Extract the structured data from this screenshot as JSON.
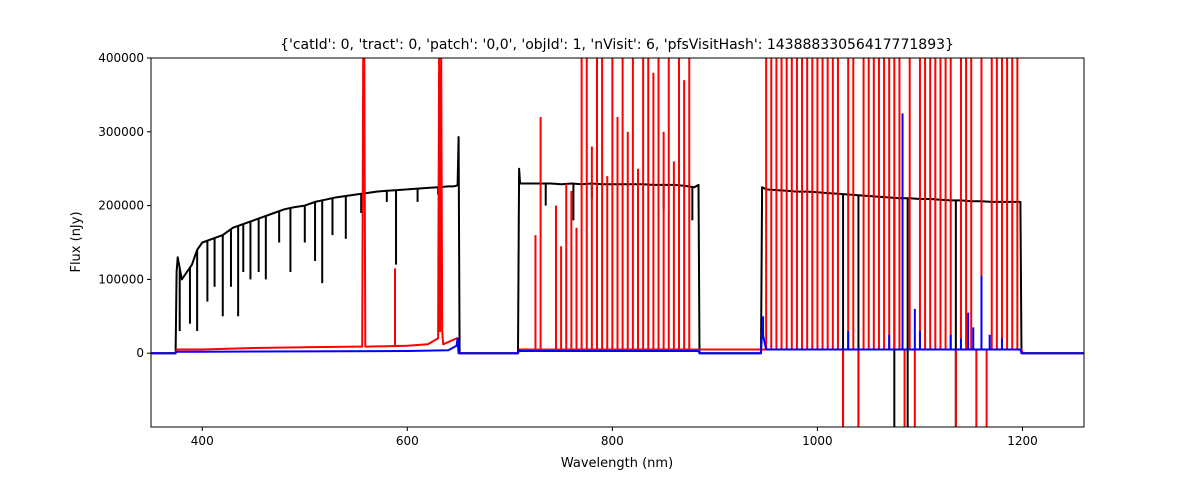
{
  "chart_data": {
    "type": "line",
    "title": "{'catId': 0, 'tract': 0, 'patch': '0,0', 'objId': 1, 'nVisit': 6, 'pfsVisitHash': 14388833056417771893}",
    "xlabel": "Wavelength (nm)",
    "ylabel": "Flux (nJy)",
    "xlim": [
      350,
      1260
    ],
    "ylim": [
      -100000,
      400000
    ],
    "xticks": [
      400,
      600,
      800,
      1000,
      1200
    ],
    "xtick_labels": [
      "400",
      "600",
      "800",
      "1000",
      "1200"
    ],
    "yticks": [
      0,
      100000,
      200000,
      300000,
      400000
    ],
    "ytick_labels": [
      "0",
      "100000",
      "200000",
      "300000",
      "400000"
    ],
    "grid": false,
    "series": [
      {
        "color": "#000000",
        "x": [
          350,
          374,
          375,
          376,
          380,
          390,
          395,
          400,
          410,
          420,
          430,
          440,
          450,
          460,
          470,
          480,
          490,
          500,
          510,
          520,
          530,
          540,
          550,
          560,
          570,
          580,
          590,
          600,
          610,
          620,
          630,
          640,
          645,
          648,
          649,
          650,
          651,
          652,
          708,
          709,
          710,
          720,
          730,
          740,
          750,
          760,
          770,
          780,
          790,
          800,
          810,
          820,
          830,
          840,
          850,
          860,
          870,
          880,
          884,
          885,
          886,
          945,
          946,
          950,
          960,
          970,
          980,
          990,
          1000,
          1010,
          1020,
          1030,
          1040,
          1050,
          1060,
          1070,
          1080,
          1090,
          1100,
          1110,
          1120,
          1130,
          1140,
          1150,
          1160,
          1170,
          1180,
          1190,
          1198,
          1199,
          1260
        ],
        "y": [
          0,
          0,
          110000,
          130000,
          100000,
          120000,
          140000,
          150000,
          155000,
          160000,
          170000,
          175000,
          180000,
          185000,
          190000,
          195000,
          198000,
          200000,
          205000,
          208000,
          211000,
          213000,
          215000,
          217000,
          219000,
          220000,
          221000,
          222000,
          223000,
          224000,
          225000,
          226000,
          226000,
          227000,
          228000,
          293000,
          0,
          0,
          0,
          250000,
          230000,
          230000,
          230000,
          230000,
          229000,
          230000,
          229000,
          230000,
          229000,
          229000,
          229000,
          229000,
          229000,
          228000,
          228000,
          228000,
          227000,
          225000,
          228000,
          0,
          0,
          0,
          225000,
          222000,
          221000,
          220000,
          219000,
          219000,
          218000,
          217000,
          216000,
          215000,
          214000,
          213000,
          212000,
          211000,
          210000,
          210000,
          209000,
          209000,
          208000,
          207000,
          207000,
          206000,
          206000,
          205000,
          205000,
          205000,
          205000,
          0,
          0
        ],
        "spikes": [
          {
            "x": 378,
            "y": 30000
          },
          {
            "x": 388,
            "y": 40000
          },
          {
            "x": 395,
            "y": 30000
          },
          {
            "x": 405,
            "y": 70000
          },
          {
            "x": 412,
            "y": 90000
          },
          {
            "x": 420,
            "y": 50000
          },
          {
            "x": 428,
            "y": 90000
          },
          {
            "x": 435,
            "y": 50000
          },
          {
            "x": 440,
            "y": 110000
          },
          {
            "x": 447,
            "y": 100000
          },
          {
            "x": 455,
            "y": 110000
          },
          {
            "x": 462,
            "y": 100000
          },
          {
            "x": 475,
            "y": 150000
          },
          {
            "x": 486,
            "y": 110000
          },
          {
            "x": 500,
            "y": 150000
          },
          {
            "x": 510,
            "y": 125000
          },
          {
            "x": 517,
            "y": 95000
          },
          {
            "x": 527,
            "y": 160000
          },
          {
            "x": 540,
            "y": 155000
          },
          {
            "x": 555,
            "y": 190000
          },
          {
            "x": 580,
            "y": 205000
          },
          {
            "x": 589,
            "y": 120000
          },
          {
            "x": 610,
            "y": 205000
          },
          {
            "x": 630,
            "y": 215000
          },
          {
            "x": 656,
            "y": 0
          },
          {
            "x": 735,
            "y": 200000
          },
          {
            "x": 762,
            "y": 180000
          },
          {
            "x": 780,
            "y": 210000
          },
          {
            "x": 850,
            "y": 195000
          },
          {
            "x": 878,
            "y": 180000
          },
          {
            "x": 1025,
            "y": -100000
          },
          {
            "x": 1040,
            "y": -100000
          },
          {
            "x": 1075,
            "y": -100000
          },
          {
            "x": 1088,
            "y": -100000
          },
          {
            "x": 1135,
            "y": -100000
          }
        ]
      },
      {
        "color": "#ff0000",
        "x": [
          350,
          374,
          375,
          380,
          400,
          450,
          500,
          550,
          556,
          557,
          558,
          559,
          560,
          600,
          620,
          630,
          631,
          632,
          633,
          634,
          635,
          640,
          648,
          649,
          650,
          651,
          652,
          708,
          709,
          710,
          945,
          946,
          1199,
          1200,
          1260
        ],
        "y": [
          0,
          0,
          5000,
          5000,
          5000,
          7000,
          8000,
          9000,
          9000,
          400000,
          400000,
          9000,
          9000,
          10000,
          12000,
          20000,
          400000,
          30000,
          400000,
          30000,
          12000,
          15000,
          20000,
          20000,
          0,
          0,
          0,
          0,
          5000,
          5000,
          5000,
          5000,
          5000,
          0,
          0
        ],
        "spikes": [
          {
            "x": 588,
            "y": 115000
          },
          {
            "x": 725,
            "y": 160000
          },
          {
            "x": 730,
            "y": 320000
          },
          {
            "x": 745,
            "y": 200000
          },
          {
            "x": 750,
            "y": 145000
          },
          {
            "x": 755,
            "y": 230000
          },
          {
            "x": 760,
            "y": 220000
          },
          {
            "x": 765,
            "y": 170000
          },
          {
            "x": 770,
            "y": 400000
          },
          {
            "x": 775,
            "y": 400000
          },
          {
            "x": 780,
            "y": 280000
          },
          {
            "x": 785,
            "y": 400000
          },
          {
            "x": 790,
            "y": 400000
          },
          {
            "x": 795,
            "y": 240000
          },
          {
            "x": 800,
            "y": 400000
          },
          {
            "x": 805,
            "y": 320000
          },
          {
            "x": 810,
            "y": 400000
          },
          {
            "x": 815,
            "y": 300000
          },
          {
            "x": 820,
            "y": 400000
          },
          {
            "x": 825,
            "y": 250000
          },
          {
            "x": 830,
            "y": 400000
          },
          {
            "x": 835,
            "y": 400000
          },
          {
            "x": 840,
            "y": 380000
          },
          {
            "x": 845,
            "y": 400000
          },
          {
            "x": 850,
            "y": 300000
          },
          {
            "x": 855,
            "y": 400000
          },
          {
            "x": 860,
            "y": 260000
          },
          {
            "x": 865,
            "y": 400000
          },
          {
            "x": 870,
            "y": 370000
          },
          {
            "x": 875,
            "y": 400000
          },
          {
            "x": 950,
            "y": 400000
          },
          {
            "x": 955,
            "y": 400000
          },
          {
            "x": 960,
            "y": 400000
          },
          {
            "x": 965,
            "y": 400000
          },
          {
            "x": 970,
            "y": 400000
          },
          {
            "x": 975,
            "y": 400000
          },
          {
            "x": 980,
            "y": 400000
          },
          {
            "x": 985,
            "y": 400000
          },
          {
            "x": 990,
            "y": 400000
          },
          {
            "x": 995,
            "y": 400000
          },
          {
            "x": 1000,
            "y": 400000
          },
          {
            "x": 1005,
            "y": 400000
          },
          {
            "x": 1010,
            "y": 400000
          },
          {
            "x": 1015,
            "y": 400000
          },
          {
            "x": 1020,
            "y": 400000
          },
          {
            "x": 1025,
            "y": -100000
          },
          {
            "x": 1030,
            "y": 400000
          },
          {
            "x": 1035,
            "y": 400000
          },
          {
            "x": 1040,
            "y": -100000
          },
          {
            "x": 1045,
            "y": 400000
          },
          {
            "x": 1050,
            "y": 400000
          },
          {
            "x": 1055,
            "y": 400000
          },
          {
            "x": 1060,
            "y": 400000
          },
          {
            "x": 1065,
            "y": 400000
          },
          {
            "x": 1070,
            "y": 400000
          },
          {
            "x": 1075,
            "y": 400000
          },
          {
            "x": 1080,
            "y": 400000
          },
          {
            "x": 1085,
            "y": -100000
          },
          {
            "x": 1090,
            "y": 400000
          },
          {
            "x": 1095,
            "y": -100000
          },
          {
            "x": 1100,
            "y": 400000
          },
          {
            "x": 1105,
            "y": 400000
          },
          {
            "x": 1110,
            "y": 400000
          },
          {
            "x": 1115,
            "y": 400000
          },
          {
            "x": 1120,
            "y": 400000
          },
          {
            "x": 1125,
            "y": 400000
          },
          {
            "x": 1130,
            "y": 400000
          },
          {
            "x": 1135,
            "y": -100000
          },
          {
            "x": 1140,
            "y": 400000
          },
          {
            "x": 1145,
            "y": 400000
          },
          {
            "x": 1150,
            "y": 400000
          },
          {
            "x": 1155,
            "y": -100000
          },
          {
            "x": 1160,
            "y": 400000
          },
          {
            "x": 1165,
            "y": -100000
          },
          {
            "x": 1170,
            "y": 400000
          },
          {
            "x": 1175,
            "y": 400000
          },
          {
            "x": 1180,
            "y": 400000
          },
          {
            "x": 1185,
            "y": 400000
          },
          {
            "x": 1190,
            "y": 400000
          },
          {
            "x": 1195,
            "y": 400000
          }
        ]
      },
      {
        "color": "#0000ff",
        "x": [
          350,
          374,
          375,
          400,
          500,
          600,
          640,
          648,
          649,
          650,
          708,
          709,
          710,
          880,
          884,
          885,
          945,
          946,
          950,
          1000,
          1198,
          1199,
          1260
        ],
        "y": [
          0,
          0,
          2000,
          2000,
          2500,
          3000,
          4000,
          10000,
          20000,
          0,
          0,
          4000,
          3000,
          3000,
          3000,
          0,
          0,
          30000,
          5000,
          5000,
          5000,
          0,
          0
        ],
        "spikes": [
          {
            "x": 947,
            "y": 50000
          },
          {
            "x": 1030,
            "y": 30000
          },
          {
            "x": 1070,
            "y": 25000
          },
          {
            "x": 1083,
            "y": 325000
          },
          {
            "x": 1095,
            "y": 60000
          },
          {
            "x": 1100,
            "y": 30000
          },
          {
            "x": 1130,
            "y": 25000
          },
          {
            "x": 1140,
            "y": 20000
          },
          {
            "x": 1147,
            "y": 55000
          },
          {
            "x": 1152,
            "y": 35000
          },
          {
            "x": 1160,
            "y": 105000
          },
          {
            "x": 1168,
            "y": 25000
          },
          {
            "x": 1180,
            "y": 20000
          }
        ]
      }
    ]
  }
}
